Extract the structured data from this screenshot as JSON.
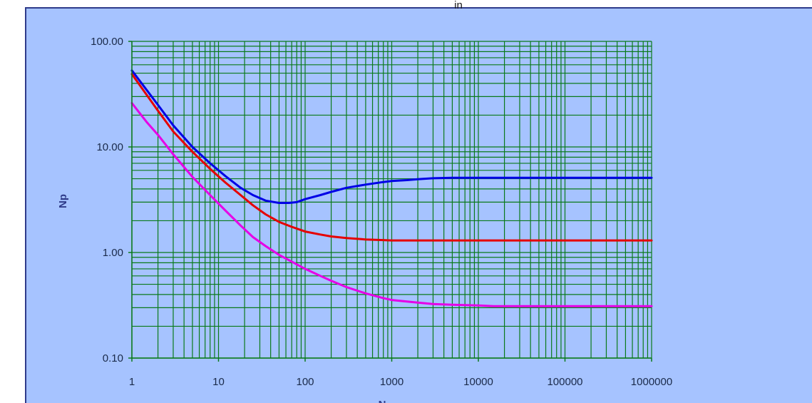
{
  "chart_data": {
    "type": "line",
    "title": "",
    "top_fragment": "in",
    "xlabel": "N",
    "ylabel": "Np",
    "x_scale": "log",
    "y_scale": "log",
    "xlim": [
      1,
      1000000
    ],
    "ylim": [
      0.1,
      100
    ],
    "grid": true,
    "x_ticks": [
      "1",
      "10",
      "100",
      "1000",
      "10000",
      "100000",
      "1000000"
    ],
    "y_ticks": [
      "0.10",
      "1.00",
      "10.00",
      "100.00"
    ],
    "colors": {
      "grid": "#0a7a1a",
      "background": "#a6c3ff",
      "plot_bg": "#a6c3ff",
      "frame": "#2f3b8a"
    },
    "series": [
      {
        "color": "#0000e6",
        "x": [
          1,
          2,
          3,
          5,
          8,
          12,
          18,
          25,
          35,
          50,
          65,
          80,
          100,
          150,
          200,
          300,
          500,
          800,
          1000,
          1500,
          2000,
          3000,
          5000,
          10000,
          100000,
          1000000
        ],
        "y": [
          53,
          25,
          16,
          10,
          7,
          5.3,
          4.1,
          3.5,
          3.1,
          2.95,
          2.95,
          3.0,
          3.2,
          3.5,
          3.75,
          4.1,
          4.4,
          4.65,
          4.75,
          4.85,
          4.95,
          5.05,
          5.1,
          5.1,
          5.1,
          5.1
        ]
      },
      {
        "color": "#e60000",
        "x": [
          1,
          2,
          3,
          5,
          8,
          12,
          18,
          25,
          35,
          50,
          70,
          100,
          150,
          200,
          300,
          500,
          800,
          1000,
          2000,
          10000,
          100000,
          1000000
        ],
        "y": [
          49,
          22,
          14,
          9,
          6.2,
          4.6,
          3.5,
          2.8,
          2.3,
          1.95,
          1.75,
          1.58,
          1.48,
          1.42,
          1.37,
          1.33,
          1.31,
          1.3,
          1.3,
          1.3,
          1.3,
          1.3
        ]
      },
      {
        "color": "#e600e6",
        "x": [
          1,
          1.5,
          2,
          3,
          5,
          8,
          12,
          18,
          25,
          35,
          50,
          70,
          100,
          150,
          200,
          300,
          500,
          800,
          1000,
          2000,
          3000,
          5000,
          10000,
          15000,
          100000,
          1000000
        ],
        "y": [
          26,
          17,
          13,
          8.5,
          5.2,
          3.5,
          2.5,
          1.8,
          1.4,
          1.15,
          0.95,
          0.82,
          0.7,
          0.6,
          0.54,
          0.47,
          0.41,
          0.37,
          0.355,
          0.335,
          0.325,
          0.32,
          0.315,
          0.31,
          0.31,
          0.31
        ]
      }
    ]
  }
}
